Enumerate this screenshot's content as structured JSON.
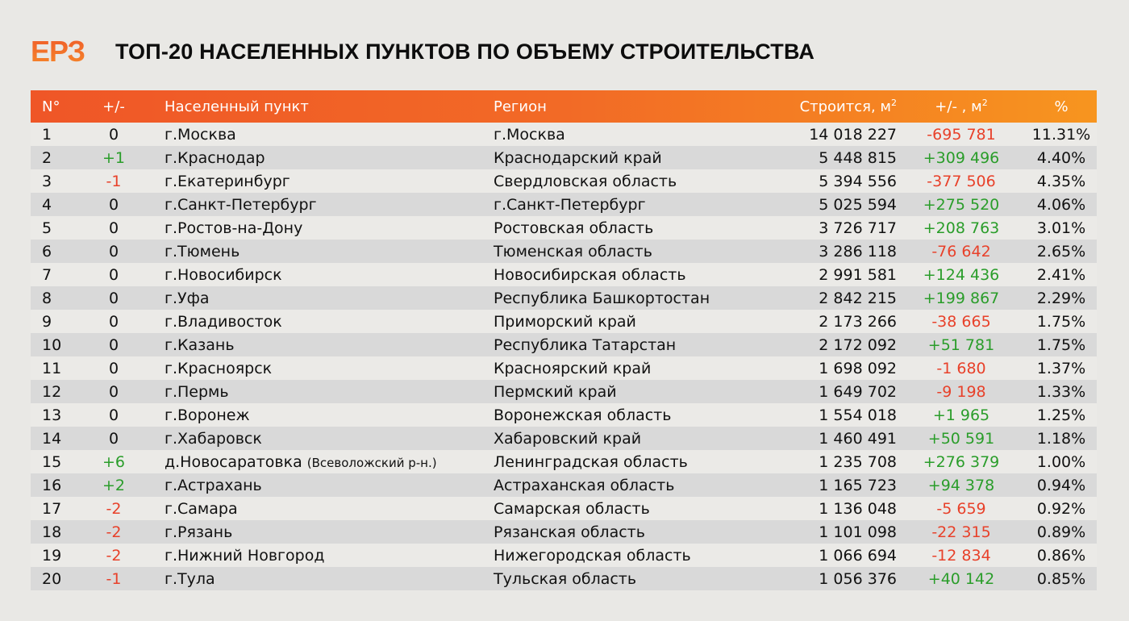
{
  "header": {
    "logo": "ЕРЗ",
    "title": "ТОП-20 НАСЕЛЕННЫХ ПУНКТОВ ПО ОБЪЕМУ СТРОИТЕЛЬСТВА"
  },
  "colors": {
    "header_gradient_start": "#ef5627",
    "header_gradient_end": "#f7951f",
    "positive": "#2a9d2a",
    "negative": "#e8412a",
    "row_odd": "#ebeae7",
    "row_even": "#d9d9d9",
    "background": "#e9e8e5"
  },
  "table": {
    "columns": {
      "num": "N°",
      "change": "+/-",
      "city": "Населенный пункт",
      "region": "Регион",
      "built": "Строится, м",
      "built_sup": "2",
      "delta": "+/- , м",
      "delta_sup": "2",
      "pct": "%"
    }
  },
  "chart_data": {
    "type": "table",
    "title": "ТОП-20 НАСЕЛЕННЫХ ПУНКТОВ ПО ОБЪЕМУ СТРОИТЕЛЬСТВА",
    "columns": [
      "N°",
      "+/-",
      "Населенный пункт",
      "Регион",
      "Строится, м²",
      "+/- , м²",
      "%"
    ],
    "rows": [
      {
        "num": "1",
        "change": "0",
        "city": "г.Москва",
        "city_note": "",
        "region": "г.Москва",
        "built": "14 018 227",
        "delta": "-695 781",
        "pct": "11.31%"
      },
      {
        "num": "2",
        "change": "+1",
        "city": "г.Краснодар",
        "city_note": "",
        "region": "Краснодарский край",
        "built": "5 448 815",
        "delta": "+309 496",
        "pct": "4.40%"
      },
      {
        "num": "3",
        "change": "-1",
        "city": "г.Екатеринбург",
        "city_note": "",
        "region": "Свердловская область",
        "built": "5 394 556",
        "delta": "-377 506",
        "pct": "4.35%"
      },
      {
        "num": "4",
        "change": "0",
        "city": "г.Санкт-Петербург",
        "city_note": "",
        "region": "г.Санкт-Петербург",
        "built": "5 025 594",
        "delta": "+275 520",
        "pct": "4.06%"
      },
      {
        "num": "5",
        "change": "0",
        "city": "г.Ростов-на-Дону",
        "city_note": "",
        "region": "Ростовская область",
        "built": "3 726 717",
        "delta": "+208 763",
        "pct": "3.01%"
      },
      {
        "num": "6",
        "change": "0",
        "city": "г.Тюмень",
        "city_note": "",
        "region": "Тюменская область",
        "built": "3 286 118",
        "delta": "-76 642",
        "pct": "2.65%"
      },
      {
        "num": "7",
        "change": "0",
        "city": "г.Новосибирск",
        "city_note": "",
        "region": "Новосибирская область",
        "built": "2 991 581",
        "delta": "+124 436",
        "pct": "2.41%"
      },
      {
        "num": "8",
        "change": "0",
        "city": "г.Уфа",
        "city_note": "",
        "region": "Республика Башкортостан",
        "built": "2 842 215",
        "delta": "+199 867",
        "pct": "2.29%"
      },
      {
        "num": "9",
        "change": "0",
        "city": "г.Владивосток",
        "city_note": "",
        "region": "Приморский край",
        "built": "2 173 266",
        "delta": "-38 665",
        "pct": "1.75%"
      },
      {
        "num": "10",
        "change": "0",
        "city": "г.Казань",
        "city_note": "",
        "region": "Республика Татарстан",
        "built": "2 172 092",
        "delta": "+51 781",
        "pct": "1.75%"
      },
      {
        "num": "11",
        "change": "0",
        "city": "г.Красноярск",
        "city_note": "",
        "region": "Красноярский край",
        "built": "1 698 092",
        "delta": "-1 680",
        "pct": "1.37%"
      },
      {
        "num": "12",
        "change": "0",
        "city": "г.Пермь",
        "city_note": "",
        "region": "Пермский край",
        "built": "1 649 702",
        "delta": "-9 198",
        "pct": "1.33%"
      },
      {
        "num": "13",
        "change": "0",
        "city": "г.Воронеж",
        "city_note": "",
        "region": "Воронежская область",
        "built": "1 554 018",
        "delta": "+1 965",
        "pct": "1.25%"
      },
      {
        "num": "14",
        "change": "0",
        "city": "г.Хабаровск",
        "city_note": "",
        "region": "Хабаровский край",
        "built": "1 460 491",
        "delta": "+50 591",
        "pct": "1.18%"
      },
      {
        "num": "15",
        "change": "+6",
        "city": "д.Новосаратовка",
        "city_note": "(Всеволожский р-н.)",
        "region": "Ленинградская область",
        "built": "1 235 708",
        "delta": "+276 379",
        "pct": "1.00%"
      },
      {
        "num": "16",
        "change": "+2",
        "city": "г.Астрахань",
        "city_note": "",
        "region": "Астраханская область",
        "built": "1 165 723",
        "delta": "+94 378",
        "pct": "0.94%"
      },
      {
        "num": "17",
        "change": "-2",
        "city": "г.Самара",
        "city_note": "",
        "region": "Самарская область",
        "built": "1 136 048",
        "delta": "-5 659",
        "pct": "0.92%"
      },
      {
        "num": "18",
        "change": "-2",
        "city": "г.Рязань",
        "city_note": "",
        "region": "Рязанская область",
        "built": "1 101 098",
        "delta": "-22 315",
        "pct": "0.89%"
      },
      {
        "num": "19",
        "change": "-2",
        "city": "г.Нижний Новгород",
        "city_note": "",
        "region": "Нижегородская область",
        "built": "1 066 694",
        "delta": "-12 834",
        "pct": "0.86%"
      },
      {
        "num": "20",
        "change": "-1",
        "city": "г.Тула",
        "city_note": "",
        "region": "Тульская область",
        "built": "1 056 376",
        "delta": "+40 142",
        "pct": "0.85%"
      }
    ]
  }
}
